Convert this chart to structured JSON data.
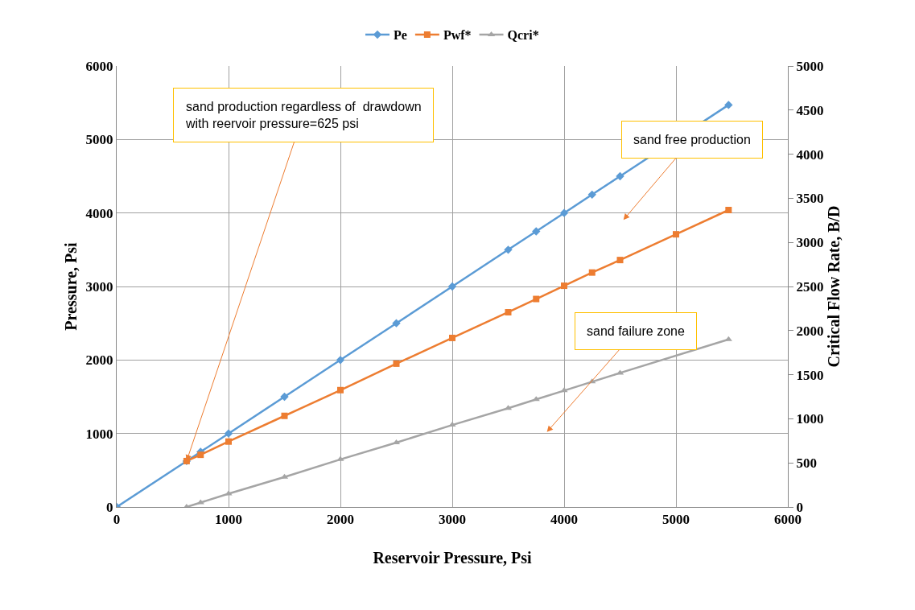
{
  "chart_data": {
    "type": "line",
    "xlabel": "Reservoir Pressure, Psi",
    "ylabel": "Pressure, Psi",
    "y2label": "Critical Flow Rate, B/D",
    "xlim": [
      0,
      6000
    ],
    "xticks": [
      0,
      1000,
      2000,
      3000,
      4000,
      5000,
      6000
    ],
    "ylim": [
      0,
      6000
    ],
    "yticks": [
      0,
      1000,
      2000,
      3000,
      4000,
      5000,
      6000
    ],
    "y2lim": [
      0,
      5000
    ],
    "y2ticks": [
      0,
      500,
      1000,
      1500,
      2000,
      2500,
      3000,
      3500,
      4000,
      4500,
      5000
    ],
    "grid": true,
    "legend": "top",
    "line_style": "solid",
    "series": [
      {
        "name": "Pe",
        "color": "#5b9bd5",
        "marker": "diamond",
        "x": [
          0,
          625,
          750,
          1000,
          1500,
          2000,
          2500,
          3000,
          3500,
          3750,
          4000,
          4250,
          4500,
          5470
        ],
        "values": [
          0,
          625,
          750,
          1000,
          1500,
          2000,
          2500,
          3000,
          3500,
          3750,
          4000,
          4250,
          4500,
          5470
        ]
      },
      {
        "name": "Pwf*",
        "color": "#ed7d31",
        "marker": "square",
        "x": [
          625,
          750,
          1000,
          1500,
          2000,
          2500,
          3000,
          3500,
          3750,
          4000,
          4250,
          4500,
          5000,
          5470
        ],
        "values": [
          625,
          710,
          890,
          1240,
          1590,
          1950,
          2300,
          2650,
          2830,
          3010,
          3190,
          3360,
          3710,
          4040
        ]
      },
      {
        "name": "Qcri*",
        "color": "#a5a5a5",
        "marker": "triangle",
        "axis": "y2",
        "x": [
          625,
          750,
          1000,
          1500,
          2000,
          2500,
          3000,
          3500,
          3750,
          4000,
          4250,
          4500,
          5470
        ],
        "values": [
          0,
          50,
          150,
          340,
          540,
          730,
          930,
          1120,
          1220,
          1320,
          1420,
          1520,
          1900
        ]
      }
    ],
    "annotations": [
      {
        "text": "sand production regardless of  drawdown\nwith reervoir pressure=625 psi",
        "x": 625,
        "y": 625
      },
      "sand free production",
      "sand failure zone"
    ]
  }
}
